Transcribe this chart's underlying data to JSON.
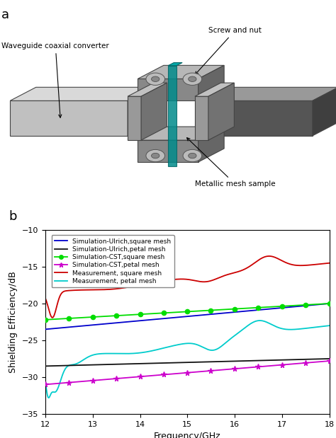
{
  "title_a": "a",
  "title_b": "b",
  "xlabel": "Frequency/GHz",
  "ylabel": "Shielding Efficiency/dB",
  "xlim": [
    12,
    18
  ],
  "ylim": [
    -35,
    -10
  ],
  "yticks": [
    -35,
    -30,
    -25,
    -20,
    -15,
    -10
  ],
  "xticks": [
    12,
    13,
    14,
    15,
    16,
    17,
    18
  ],
  "legend_entries": [
    "Simulation-Ulrich,square mesh",
    "Simulation-Ulrich,petal mesh",
    "Simulation-CST,square mesh",
    "Simulation-CST,petal mesh",
    "Measurement, square mesh",
    "Measurement, petal mesh"
  ],
  "line_colors": {
    "ulrich_square": "#0000CC",
    "ulrich_petal": "#111111",
    "cst_square": "#00DD00",
    "cst_petal": "#CC00CC",
    "meas_square": "#CC0000",
    "meas_petal": "#00CCCC"
  },
  "bg_color": "#ffffff",
  "annotation_waveguide": "Waveguide coaxial converter",
  "annotation_screw": "Screw and nut",
  "annotation_sample": "Metallic mesh sample"
}
